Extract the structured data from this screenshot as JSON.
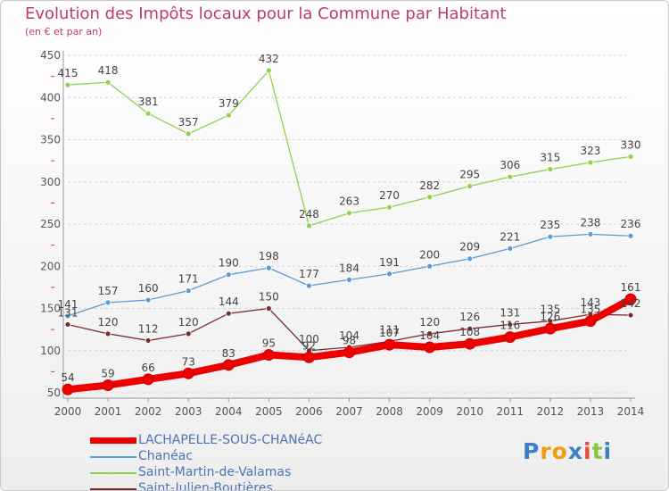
{
  "chart_data": {
    "type": "line",
    "title": "Evolution des Impôts locaux pour la Commune par Habitant",
    "subtitle": "(en € et par an)",
    "xlabel": "",
    "ylabel": "",
    "categories": [
      "2000",
      "2001",
      "2002",
      "2003",
      "2004",
      "2005",
      "2006",
      "2007",
      "2008",
      "2009",
      "2010",
      "2011",
      "2012",
      "2013",
      "2014"
    ],
    "ylim": [
      50,
      450
    ],
    "yticks": [
      50,
      100,
      150,
      200,
      250,
      300,
      350,
      400,
      450
    ],
    "grid": "horizontal dashed",
    "legend_position": "bottom-left",
    "series": [
      {
        "name": "LACHAPELLE-SOUS-CHANéAC",
        "color": "#ee0000",
        "values": [
          54,
          59,
          66,
          73,
          83,
          95,
          92,
          98,
          107,
          104,
          108,
          116,
          126,
          135,
          161
        ],
        "labels": [
          "54",
          "59",
          "66",
          "73",
          "83",
          "95",
          "92",
          "98",
          "107",
          "104",
          "108",
          "116",
          "126",
          "135",
          "161"
        ]
      },
      {
        "name": "Chanéac",
        "color": "#5b9bd5",
        "values": [
          141,
          157,
          160,
          171,
          190,
          198,
          177,
          184,
          191,
          200,
          209,
          221,
          235,
          238,
          236
        ],
        "labels": [
          "141",
          "157",
          "160",
          "171",
          "190",
          "198",
          "177",
          "184",
          "191",
          "200",
          "209",
          "221",
          "235",
          "238",
          "236"
        ]
      },
      {
        "name": "Saint-Martin-de-Valamas",
        "color": "#92d050",
        "values": [
          415,
          418,
          381,
          357,
          379,
          432,
          248,
          263,
          270,
          282,
          295,
          306,
          315,
          323,
          330
        ],
        "labels": [
          "415",
          "418",
          "381",
          "357",
          "379",
          "432",
          "248",
          "263",
          "270",
          "282",
          "295",
          "306",
          "315",
          "323",
          "330"
        ]
      },
      {
        "name": "Saint-Julien-Boutières",
        "color": "#7b2c2c",
        "values": [
          131,
          120,
          112,
          120,
          144,
          150,
          100,
          104,
          111,
          120,
          126,
          131,
          135,
          143,
          142
        ],
        "labels": [
          "131",
          "120",
          "112",
          "120",
          "144",
          "150",
          "100",
          "104",
          "111",
          "120",
          "126",
          "131",
          "135",
          "143",
          "142"
        ]
      }
    ]
  },
  "brand": {
    "letters": [
      "P",
      "r",
      "o",
      "x",
      "i",
      "t",
      "i"
    ],
    "colors": [
      "#3b7fc4",
      "#f39c12",
      "#f39c12",
      "#3b7fc4",
      "#e74c3c",
      "#8cc63f",
      "#3b7fc4"
    ]
  }
}
